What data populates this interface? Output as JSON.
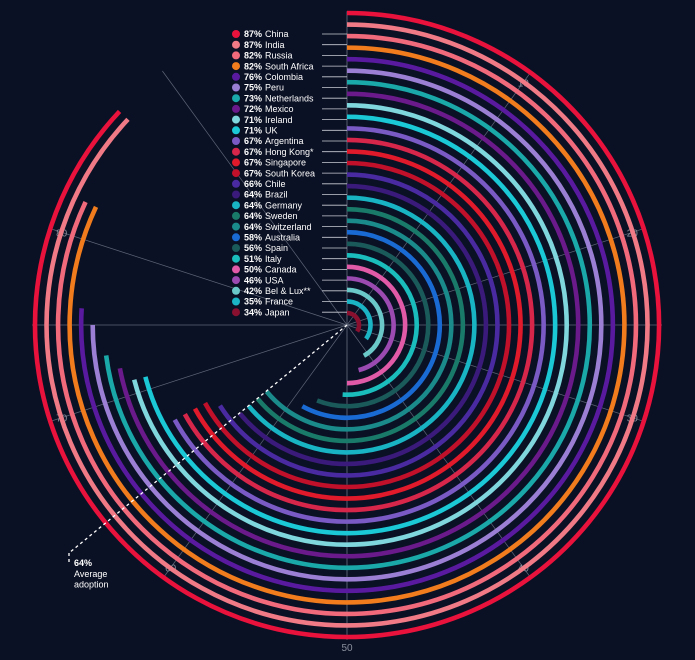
{
  "chart_data": {
    "type": "radial-bar",
    "title": "",
    "axis_ticks": [
      "10",
      "20",
      "30",
      "40",
      "50",
      "60",
      "70",
      "80"
    ],
    "axis_range": [
      0,
      100
    ],
    "average": {
      "value": 64,
      "label_pct": "64%",
      "label_lines": [
        "Average",
        "adoption"
      ]
    },
    "series": [
      {
        "name": "China",
        "value": 87,
        "label": "87%",
        "color": "#e8123c"
      },
      {
        "name": "India",
        "value": 87,
        "label": "87%",
        "color": "#f07a86"
      },
      {
        "name": "Russia",
        "value": 82,
        "label": "82%",
        "color": "#f06a7c"
      },
      {
        "name": "South Africa",
        "value": 82,
        "label": "82%",
        "color": "#f07c1e"
      },
      {
        "name": "Colombia",
        "value": 76,
        "label": "76%",
        "color": "#5a1aa0"
      },
      {
        "name": "Peru",
        "value": 75,
        "label": "75%",
        "color": "#9b7fd4"
      },
      {
        "name": "Netherlands",
        "value": 73,
        "label": "73%",
        "color": "#1aa8a8"
      },
      {
        "name": "Mexico",
        "value": 72,
        "label": "72%",
        "color": "#6a1a8a"
      },
      {
        "name": "Ireland",
        "value": 71,
        "label": "71%",
        "color": "#7fd6dc"
      },
      {
        "name": "UK",
        "value": 71,
        "label": "71%",
        "color": "#1ac8d6"
      },
      {
        "name": "Argentina",
        "value": 67,
        "label": "67%",
        "color": "#7a5ac4"
      },
      {
        "name": "Hong Kong*",
        "value": 67,
        "label": "67%",
        "color": "#d6264a"
      },
      {
        "name": "Singapore",
        "value": 67,
        "label": "67%",
        "color": "#e01a2a"
      },
      {
        "name": "South Korea",
        "value": 67,
        "label": "67%",
        "color": "#c0102a"
      },
      {
        "name": "Chile",
        "value": 66,
        "label": "66%",
        "color": "#4a2aa0"
      },
      {
        "name": "Brazil",
        "value": 64,
        "label": "64%",
        "color": "#3a1a7a"
      },
      {
        "name": "Germany",
        "value": 64,
        "label": "64%",
        "color": "#18b4c4"
      },
      {
        "name": "Sweden",
        "value": 64,
        "label": "64%",
        "color": "#1a7a6a"
      },
      {
        "name": "Switzerland",
        "value": 64,
        "label": "64%",
        "color": "#1a8a8a"
      },
      {
        "name": "Australia",
        "value": 58,
        "label": "58%",
        "color": "#1a6ad4"
      },
      {
        "name": "Spain",
        "value": 56,
        "label": "56%",
        "color": "#1a5a5a"
      },
      {
        "name": "Italy",
        "value": 51,
        "label": "51%",
        "color": "#1abcbc"
      },
      {
        "name": "Canada",
        "value": 50,
        "label": "50%",
        "color": "#e05aa8"
      },
      {
        "name": "USA",
        "value": 46,
        "label": "46%",
        "color": "#9a4ab0"
      },
      {
        "name": "Bel & Lux**",
        "value": 42,
        "label": "42%",
        "color": "#6ac8c8"
      },
      {
        "name": "France",
        "value": 35,
        "label": "35%",
        "color": "#1ab4c4"
      },
      {
        "name": "Japan",
        "value": 34,
        "label": "34%",
        "color": "#8a1030"
      }
    ]
  }
}
